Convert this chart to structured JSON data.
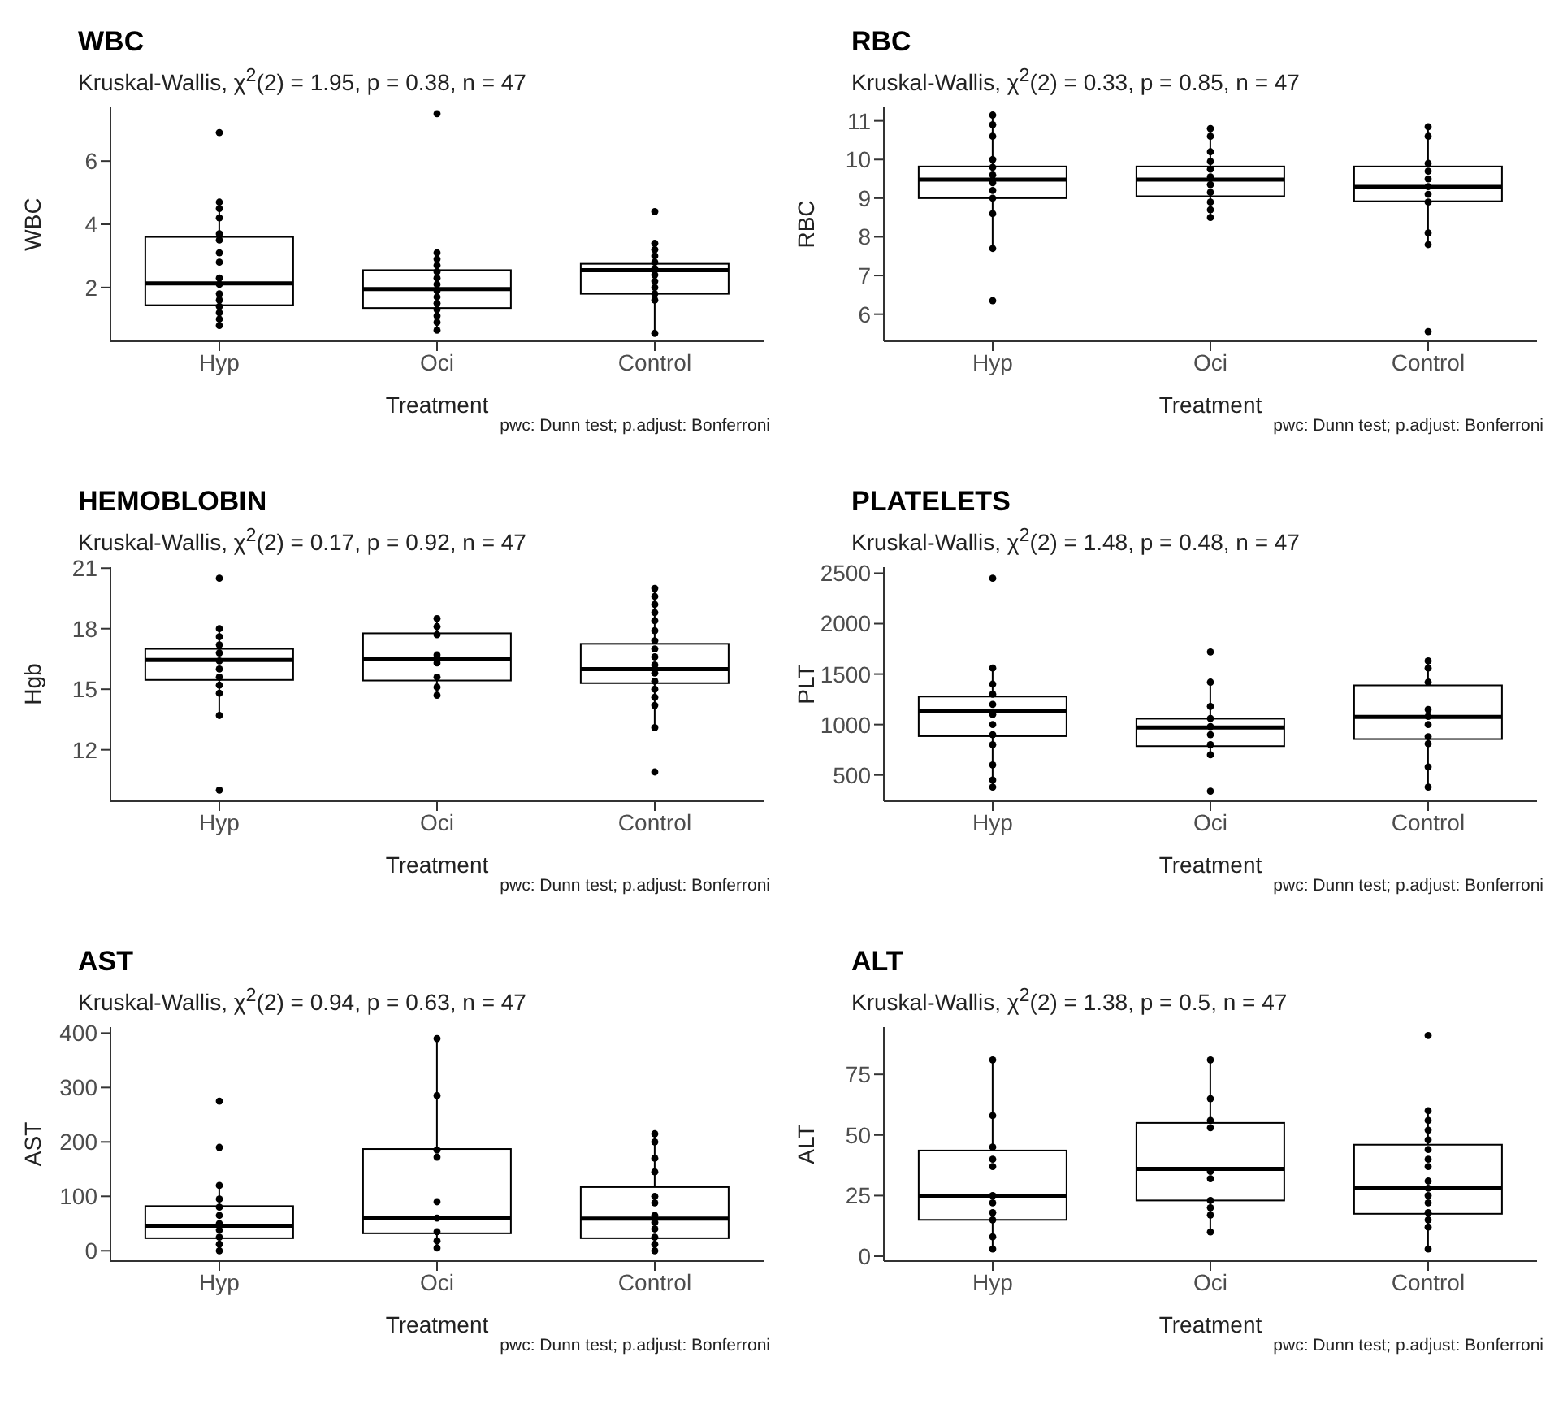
{
  "chart_data": [
    {
      "type": "box",
      "title": "WBC",
      "subtitle": "Kruskal-Wallis, χ$^{2}$(2) = 1.95, p = 0.38, n = 47",
      "xlabel": "Treatment",
      "ylabel": "WBC",
      "categories": [
        "Hyp",
        "Oci",
        "Control"
      ],
      "ylim": [
        0.3,
        7.7
      ],
      "yticks": [
        2,
        4,
        6
      ],
      "marker": "circle",
      "annotations": [
        "pwc: Dunn test; p.adjust: Bonferroni"
      ],
      "boxes": [
        {
          "low": 0.8,
          "q1": 1.44,
          "median": 2.13,
          "q3": 3.6,
          "high": 4.7
        },
        {
          "low": 0.65,
          "q1": 1.35,
          "median": 1.95,
          "q3": 2.55,
          "high": 3.1
        },
        {
          "low": 0.55,
          "q1": 1.8,
          "median": 2.55,
          "q3": 2.75,
          "high": 3.4
        }
      ],
      "series": [
        {
          "type": "scatter",
          "color": "#000000",
          "x": [
            "Hyp",
            "Hyp",
            "Hyp",
            "Hyp",
            "Hyp",
            "Hyp",
            "Hyp",
            "Hyp",
            "Hyp",
            "Hyp",
            "Hyp",
            "Hyp",
            "Hyp",
            "Hyp",
            "Hyp",
            "Hyp",
            "Oci",
            "Oci",
            "Oci",
            "Oci",
            "Oci",
            "Oci",
            "Oci",
            "Oci",
            "Oci",
            "Oci",
            "Oci",
            "Oci",
            "Oci",
            "Oci",
            "Control",
            "Control",
            "Control",
            "Control",
            "Control",
            "Control",
            "Control",
            "Control",
            "Control",
            "Control",
            "Control",
            "Control"
          ],
          "values": [
            6.9,
            4.7,
            4.5,
            4.2,
            3.7,
            3.5,
            3.1,
            2.8,
            2.3,
            2.1,
            1.8,
            1.6,
            1.4,
            1.2,
            1.0,
            0.8,
            7.5,
            3.1,
            2.9,
            2.7,
            2.5,
            2.3,
            2.1,
            1.9,
            1.7,
            1.5,
            1.3,
            1.1,
            0.9,
            0.65,
            4.4,
            3.4,
            3.2,
            3.0,
            2.8,
            2.6,
            2.4,
            2.2,
            2.0,
            1.8,
            1.6,
            0.55
          ]
        }
      ]
    },
    {
      "type": "box",
      "title": "RBC",
      "subtitle": "Kruskal-Wallis, χ$^{2}$(2) = 0.33, p = 0.85, n = 47",
      "xlabel": "Treatment",
      "ylabel": "RBC",
      "categories": [
        "Hyp",
        "Oci",
        "Control"
      ],
      "ylim": [
        5.3,
        11.35
      ],
      "yticks": [
        6,
        7,
        8,
        9,
        10,
        11
      ],
      "marker": "circle",
      "annotations": [
        "pwc: Dunn test; p.adjust: Bonferroni"
      ],
      "boxes": [
        {
          "low": 7.7,
          "q1": 9.0,
          "median": 9.48,
          "q3": 9.82,
          "high": 11.15
        },
        {
          "low": 8.5,
          "q1": 9.05,
          "median": 9.48,
          "q3": 9.82,
          "high": 10.8
        },
        {
          "low": 7.8,
          "q1": 8.92,
          "median": 9.29,
          "q3": 9.82,
          "high": 10.85
        }
      ],
      "series": [
        {
          "type": "scatter",
          "color": "#000000",
          "x": [
            "Hyp",
            "Hyp",
            "Hyp",
            "Hyp",
            "Hyp",
            "Hyp",
            "Hyp",
            "Hyp",
            "Hyp",
            "Hyp",
            "Hyp",
            "Hyp",
            "Oci",
            "Oci",
            "Oci",
            "Oci",
            "Oci",
            "Oci",
            "Oci",
            "Oci",
            "Oci",
            "Oci",
            "Oci",
            "Control",
            "Control",
            "Control",
            "Control",
            "Control",
            "Control",
            "Control",
            "Control",
            "Control",
            "Control",
            "Control"
          ],
          "values": [
            11.15,
            10.9,
            10.6,
            10.0,
            9.8,
            9.6,
            9.4,
            9.2,
            9.0,
            8.6,
            7.7,
            6.35,
            10.8,
            10.6,
            10.2,
            9.95,
            9.75,
            9.55,
            9.35,
            9.15,
            8.9,
            8.7,
            8.5,
            10.85,
            10.6,
            9.9,
            9.7,
            9.5,
            9.3,
            9.1,
            8.9,
            8.1,
            7.8,
            5.55
          ]
        }
      ]
    },
    {
      "type": "box",
      "title": "HEMOBLOBIN",
      "subtitle": "Kruskal-Wallis, χ$^{2}$(2) = 0.17, p = 0.92, n = 47",
      "xlabel": "Treatment",
      "ylabel": "Hgb",
      "categories": [
        "Hyp",
        "Oci",
        "Control"
      ],
      "ylim": [
        9.45,
        21.05
      ],
      "yticks": [
        12,
        15,
        18,
        21
      ],
      "marker": "circle",
      "annotations": [
        "pwc: Dunn test; p.adjust: Bonferroni"
      ],
      "boxes": [
        {
          "low": 13.7,
          "q1": 15.46,
          "median": 16.45,
          "q3": 17.0,
          "high": 18.0
        },
        {
          "low": 14.7,
          "q1": 15.43,
          "median": 16.5,
          "q3": 17.77,
          "high": 18.5
        },
        {
          "low": 13.1,
          "q1": 15.3,
          "median": 16.0,
          "q3": 17.25,
          "high": 20.0
        }
      ],
      "series": [
        {
          "type": "scatter",
          "color": "#000000",
          "x": [
            "Hyp",
            "Hyp",
            "Hyp",
            "Hyp",
            "Hyp",
            "Hyp",
            "Hyp",
            "Hyp",
            "Hyp",
            "Hyp",
            "Hyp",
            "Hyp",
            "Oci",
            "Oci",
            "Oci",
            "Oci",
            "Oci",
            "Oci",
            "Oci",
            "Oci",
            "Control",
            "Control",
            "Control",
            "Control",
            "Control",
            "Control",
            "Control",
            "Control",
            "Control",
            "Control",
            "Control",
            "Control",
            "Control",
            "Control",
            "Control",
            "Control",
            "Control"
          ],
          "values": [
            20.5,
            18.0,
            17.6,
            17.2,
            16.8,
            16.4,
            16.0,
            15.6,
            15.2,
            14.8,
            13.7,
            10.0,
            18.5,
            18.1,
            17.7,
            16.7,
            16.3,
            15.6,
            15.1,
            14.7,
            20.0,
            19.6,
            19.2,
            18.8,
            18.4,
            17.9,
            17.4,
            17.0,
            16.6,
            16.2,
            15.8,
            15.4,
            15.0,
            14.6,
            14.2,
            13.1,
            10.9
          ]
        }
      ]
    },
    {
      "type": "box",
      "title": "PLATELETS",
      "subtitle": "Kruskal-Wallis, χ$^{2}$(2) = 1.48, p = 0.48, n = 47",
      "xlabel": "Treatment",
      "ylabel": "PLT",
      "categories": [
        "Hyp",
        "Oci",
        "Control"
      ],
      "ylim": [
        240,
        2560
      ],
      "yticks": [
        500,
        1000,
        1500,
        2000,
        2500
      ],
      "marker": "circle",
      "annotations": [
        "pwc: Dunn test; p.adjust: Bonferroni"
      ],
      "boxes": [
        {
          "low": 380,
          "q1": 885,
          "median": 1133,
          "q3": 1277,
          "high": 1560
        },
        {
          "low": 700,
          "q1": 786,
          "median": 971,
          "q3": 1058,
          "high": 1420
        },
        {
          "low": 380,
          "q1": 856,
          "median": 1075,
          "q3": 1388,
          "high": 1630
        }
      ],
      "series": [
        {
          "type": "scatter",
          "color": "#000000",
          "x": [
            "Hyp",
            "Hyp",
            "Hyp",
            "Hyp",
            "Hyp",
            "Hyp",
            "Hyp",
            "Hyp",
            "Hyp",
            "Hyp",
            "Hyp",
            "Hyp",
            "Oci",
            "Oci",
            "Oci",
            "Oci",
            "Oci",
            "Oci",
            "Oci",
            "Oci",
            "Oci",
            "Control",
            "Control",
            "Control",
            "Control",
            "Control",
            "Control",
            "Control",
            "Control",
            "Control",
            "Control"
          ],
          "values": [
            2450,
            1560,
            1400,
            1300,
            1200,
            1100,
            1000,
            900,
            800,
            600,
            450,
            380,
            1720,
            1420,
            1180,
            1060,
            980,
            900,
            800,
            700,
            340,
            1630,
            1560,
            1420,
            1150,
            1080,
            1000,
            880,
            810,
            580,
            380
          ]
        }
      ]
    },
    {
      "type": "box",
      "title": "AST",
      "subtitle": "Kruskal-Wallis, χ$^{2}$(2) = 0.94, p = 0.63, n = 47",
      "xlabel": "Treatment",
      "ylabel": "AST",
      "categories": [
        "Hyp",
        "Oci",
        "Control"
      ],
      "ylim": [
        -19,
        411
      ],
      "yticks": [
        0,
        100,
        200,
        300,
        400
      ],
      "marker": "circle",
      "annotations": [
        "pwc: Dunn test; p.adjust: Bonferroni"
      ],
      "boxes": [
        {
          "low": 0,
          "q1": 23,
          "median": 46,
          "q3": 82,
          "high": 120
        },
        {
          "low": 5,
          "q1": 32,
          "median": 61,
          "q3": 187,
          "high": 390
        },
        {
          "low": 0,
          "q1": 23,
          "median": 59,
          "q3": 117,
          "high": 215
        }
      ],
      "series": [
        {
          "type": "scatter",
          "color": "#000000",
          "x": [
            "Hyp",
            "Hyp",
            "Hyp",
            "Hyp",
            "Hyp",
            "Hyp",
            "Hyp",
            "Hyp",
            "Hyp",
            "Hyp",
            "Hyp",
            "Oci",
            "Oci",
            "Oci",
            "Oci",
            "Oci",
            "Oci",
            "Oci",
            "Oci",
            "Oci",
            "Control",
            "Control",
            "Control",
            "Control",
            "Control",
            "Control",
            "Control",
            "Control",
            "Control",
            "Control",
            "Control",
            "Control"
          ],
          "values": [
            275,
            190,
            120,
            95,
            80,
            65,
            50,
            38,
            25,
            12,
            0,
            390,
            285,
            185,
            172,
            90,
            60,
            35,
            18,
            5,
            215,
            200,
            170,
            145,
            100,
            88,
            65,
            52,
            40,
            25,
            12,
            0
          ]
        }
      ]
    },
    {
      "type": "box",
      "title": "ALT",
      "subtitle": "Kruskal-Wallis, χ$^{2}$(2) = 1.38, p = 0.5, n = 47",
      "xlabel": "Treatment",
      "ylabel": "ALT",
      "categories": [
        "Hyp",
        "Oci",
        "Control"
      ],
      "ylim": [
        -2,
        94.5
      ],
      "yticks": [
        0,
        25,
        50,
        75
      ],
      "marker": "circle",
      "annotations": [
        "pwc: Dunn test; p.adjust: Bonferroni"
      ],
      "boxes": [
        {
          "low": 3,
          "q1": 15,
          "median": 25,
          "q3": 43.6,
          "high": 81
        },
        {
          "low": 10,
          "q1": 23,
          "median": 36,
          "q3": 55,
          "high": 81
        },
        {
          "low": 3,
          "q1": 17.5,
          "median": 28,
          "q3": 46,
          "high": 60
        }
      ],
      "series": [
        {
          "type": "scatter",
          "color": "#000000",
          "x": [
            "Hyp",
            "Hyp",
            "Hyp",
            "Hyp",
            "Hyp",
            "Hyp",
            "Hyp",
            "Hyp",
            "Hyp",
            "Hyp",
            "Hyp",
            "Oci",
            "Oci",
            "Oci",
            "Oci",
            "Oci",
            "Oci",
            "Oci",
            "Oci",
            "Oci",
            "Oci",
            "Control",
            "Control",
            "Control",
            "Control",
            "Control",
            "Control",
            "Control",
            "Control",
            "Control",
            "Control",
            "Control",
            "Control",
            "Control",
            "Control",
            "Control",
            "Control"
          ],
          "values": [
            81,
            58,
            45,
            40,
            37,
            25,
            22,
            18,
            15,
            8,
            3,
            81,
            65,
            56,
            53,
            35,
            32,
            23,
            20,
            17,
            10,
            91,
            60,
            56,
            52,
            48,
            44,
            40,
            37,
            31,
            28,
            25,
            22,
            18,
            15,
            12,
            3
          ]
        }
      ]
    }
  ]
}
